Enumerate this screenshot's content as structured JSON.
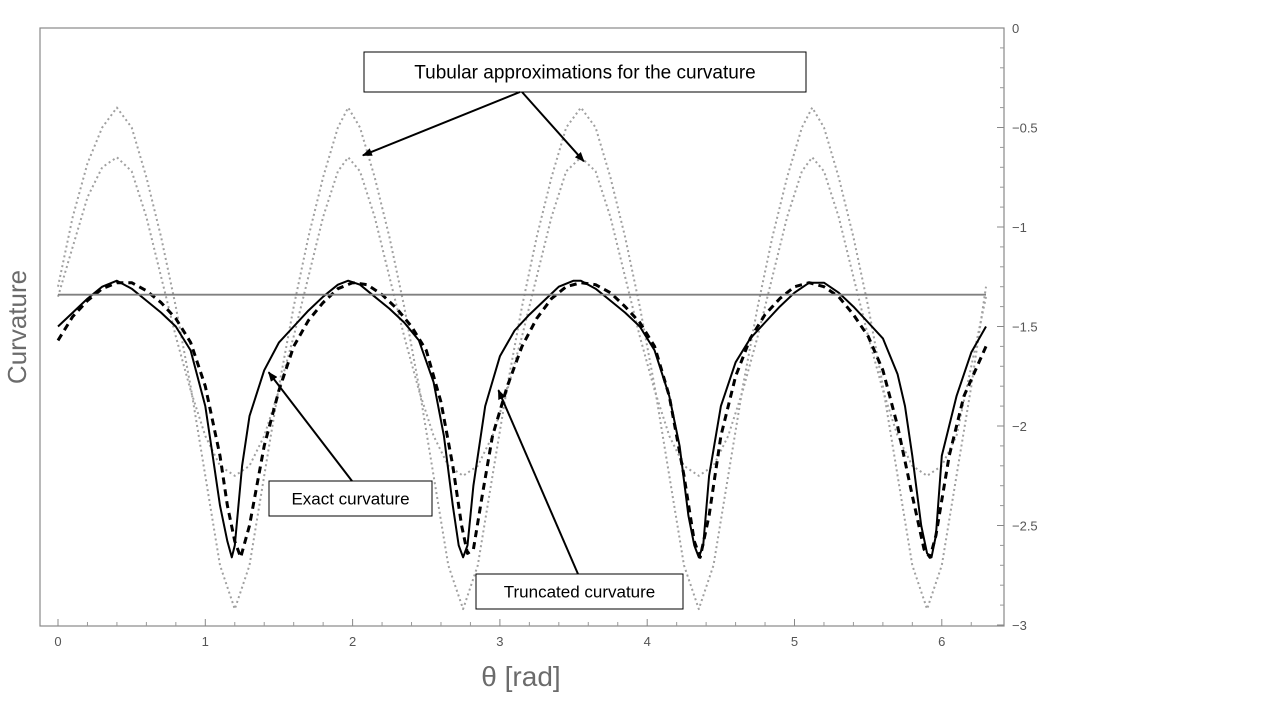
{
  "chart_data": {
    "type": "line",
    "xlabel": "θ [rad]",
    "ylabel": "Curvature",
    "xlim": [
      0,
      6.35
    ],
    "ylim": [
      -3,
      0
    ],
    "x_ticks": [
      0,
      1,
      2,
      3,
      4,
      5,
      6
    ],
    "y_ticks": [
      0,
      -0.5,
      -1,
      -1.5,
      -2,
      -2.5,
      -3
    ],
    "y_tick_labels": [
      "0",
      "−0.5",
      "−1",
      "−1.5",
      "−2",
      "−2.5",
      "−3"
    ],
    "y_axis_side": "right",
    "grid": false,
    "legend": "none",
    "series": [
      {
        "style": "solid",
        "color": "#000000",
        "x": [
          0.0,
          0.1,
          0.2,
          0.3,
          0.4,
          0.5,
          0.6,
          0.7,
          0.8,
          0.9,
          1.0,
          1.05,
          1.1,
          1.15,
          1.18,
          1.2,
          1.25,
          1.3,
          1.4,
          1.5,
          1.6,
          1.7,
          1.8,
          1.9,
          1.97,
          2.05,
          2.15,
          2.25,
          2.35,
          2.45,
          2.55,
          2.62,
          2.68,
          2.72,
          2.75,
          2.78,
          2.82,
          2.9,
          3.0,
          3.1,
          3.2,
          3.3,
          3.4,
          3.5,
          3.55,
          3.65,
          3.75,
          3.85,
          3.95,
          4.05,
          4.15,
          4.22,
          4.28,
          4.32,
          4.35,
          4.38,
          4.42,
          4.5,
          4.6,
          4.7,
          4.8,
          4.9,
          5.0,
          5.1,
          5.2,
          5.3,
          5.4,
          5.5,
          5.6,
          5.7,
          5.75,
          5.8,
          5.86,
          5.9,
          5.93,
          5.96,
          6.0,
          6.1,
          6.2,
          6.3
        ],
        "y": [
          -1.5,
          -1.43,
          -1.36,
          -1.3,
          -1.27,
          -1.31,
          -1.37,
          -1.43,
          -1.5,
          -1.62,
          -1.9,
          -2.15,
          -2.4,
          -2.58,
          -2.66,
          -2.6,
          -2.2,
          -1.95,
          -1.72,
          -1.58,
          -1.5,
          -1.42,
          -1.35,
          -1.29,
          -1.27,
          -1.29,
          -1.35,
          -1.41,
          -1.48,
          -1.57,
          -1.78,
          -2.05,
          -2.4,
          -2.6,
          -2.66,
          -2.6,
          -2.3,
          -1.9,
          -1.65,
          -1.52,
          -1.44,
          -1.37,
          -1.3,
          -1.27,
          -1.27,
          -1.31,
          -1.37,
          -1.43,
          -1.5,
          -1.62,
          -1.85,
          -2.1,
          -2.45,
          -2.6,
          -2.66,
          -2.6,
          -2.25,
          -1.9,
          -1.68,
          -1.56,
          -1.48,
          -1.4,
          -1.33,
          -1.28,
          -1.28,
          -1.33,
          -1.4,
          -1.48,
          -1.56,
          -1.74,
          -1.9,
          -2.15,
          -2.5,
          -2.64,
          -2.66,
          -2.55,
          -2.15,
          -1.85,
          -1.63,
          -1.5
        ]
      },
      {
        "style": "dashed",
        "color": "#000000",
        "x": [
          0.0,
          0.1,
          0.2,
          0.3,
          0.4,
          0.5,
          0.6,
          0.7,
          0.8,
          0.9,
          1.0,
          1.1,
          1.15,
          1.2,
          1.24,
          1.3,
          1.4,
          1.5,
          1.6,
          1.7,
          1.8,
          1.9,
          2.0,
          2.1,
          2.2,
          2.3,
          2.4,
          2.5,
          2.6,
          2.68,
          2.74,
          2.78,
          2.82,
          2.88,
          2.95,
          3.05,
          3.15,
          3.25,
          3.35,
          3.45,
          3.55,
          3.65,
          3.75,
          3.85,
          3.95,
          4.05,
          4.15,
          4.25,
          4.32,
          4.36,
          4.42,
          4.5,
          4.6,
          4.7,
          4.8,
          4.9,
          5.0,
          5.1,
          5.2,
          5.3,
          5.4,
          5.5,
          5.6,
          5.7,
          5.8,
          5.88,
          5.92,
          5.96,
          6.05,
          6.15,
          6.3
        ],
        "y": [
          -1.57,
          -1.45,
          -1.37,
          -1.31,
          -1.28,
          -1.28,
          -1.32,
          -1.38,
          -1.46,
          -1.58,
          -1.8,
          -2.15,
          -2.4,
          -2.58,
          -2.66,
          -2.5,
          -2.1,
          -1.82,
          -1.6,
          -1.47,
          -1.38,
          -1.31,
          -1.28,
          -1.29,
          -1.34,
          -1.41,
          -1.5,
          -1.62,
          -1.88,
          -2.2,
          -2.5,
          -2.64,
          -2.62,
          -2.35,
          -2.05,
          -1.8,
          -1.6,
          -1.46,
          -1.36,
          -1.3,
          -1.28,
          -1.29,
          -1.33,
          -1.4,
          -1.48,
          -1.6,
          -1.85,
          -2.25,
          -2.58,
          -2.66,
          -2.45,
          -2.05,
          -1.75,
          -1.56,
          -1.44,
          -1.36,
          -1.3,
          -1.28,
          -1.3,
          -1.35,
          -1.44,
          -1.55,
          -1.72,
          -2.0,
          -2.35,
          -2.62,
          -2.66,
          -2.55,
          -2.15,
          -1.85,
          -1.6
        ]
      },
      {
        "style": "solid",
        "color": "#808080",
        "x": [
          0.0,
          6.3
        ],
        "y": [
          -1.34,
          -1.34
        ]
      },
      {
        "style": "dotted",
        "color": "#a0a0a0",
        "x": [
          0.0,
          0.1,
          0.2,
          0.3,
          0.4,
          0.5,
          0.6,
          0.7,
          0.8,
          0.9,
          1.0,
          1.1,
          1.2,
          1.3,
          1.4,
          1.5,
          1.6,
          1.7,
          1.8,
          1.9,
          1.97,
          2.05,
          2.15,
          2.25,
          2.35,
          2.45,
          2.55,
          2.65,
          2.75,
          2.85,
          2.95,
          3.05,
          3.15,
          3.25,
          3.35,
          3.45,
          3.55,
          3.65,
          3.75,
          3.85,
          3.95,
          4.05,
          4.15,
          4.25,
          4.35,
          4.45,
          4.55,
          4.65,
          4.75,
          4.85,
          4.95,
          5.05,
          5.12,
          5.2,
          5.3,
          5.4,
          5.5,
          5.6,
          5.7,
          5.8,
          5.9,
          6.0,
          6.1,
          6.2,
          6.3
        ],
        "y": [
          -1.3,
          -0.95,
          -0.68,
          -0.5,
          -0.4,
          -0.5,
          -0.75,
          -1.05,
          -1.4,
          -1.8,
          -2.25,
          -2.7,
          -2.92,
          -2.7,
          -2.25,
          -1.8,
          -1.4,
          -1.05,
          -0.75,
          -0.5,
          -0.4,
          -0.5,
          -0.75,
          -1.05,
          -1.4,
          -1.8,
          -2.25,
          -2.7,
          -2.92,
          -2.7,
          -2.25,
          -1.8,
          -1.4,
          -1.05,
          -0.75,
          -0.5,
          -0.4,
          -0.5,
          -0.75,
          -1.05,
          -1.4,
          -1.8,
          -2.25,
          -2.7,
          -2.92,
          -2.7,
          -2.25,
          -1.8,
          -1.4,
          -1.05,
          -0.75,
          -0.5,
          -0.4,
          -0.5,
          -0.75,
          -1.05,
          -1.4,
          -1.8,
          -2.25,
          -2.7,
          -2.92,
          -2.7,
          -2.25,
          -1.8,
          -1.3
        ]
      },
      {
        "style": "dotted",
        "color": "#a0a0a0",
        "x": [
          0.0,
          0.1,
          0.2,
          0.3,
          0.4,
          0.5,
          0.6,
          0.7,
          0.8,
          0.9,
          1.0,
          1.1,
          1.2,
          1.3,
          1.4,
          1.5,
          1.6,
          1.7,
          1.8,
          1.9,
          1.97,
          2.05,
          2.15,
          2.25,
          2.35,
          2.45,
          2.55,
          2.65,
          2.75,
          2.85,
          2.95,
          3.05,
          3.15,
          3.25,
          3.35,
          3.45,
          3.55,
          3.65,
          3.75,
          3.85,
          3.95,
          4.05,
          4.15,
          4.25,
          4.35,
          4.45,
          4.55,
          4.65,
          4.75,
          4.85,
          4.95,
          5.05,
          5.12,
          5.2,
          5.3,
          5.4,
          5.5,
          5.6,
          5.7,
          5.8,
          5.9,
          6.0,
          6.1,
          6.2,
          6.3
        ],
        "y": [
          -1.35,
          -1.1,
          -0.85,
          -0.7,
          -0.65,
          -0.72,
          -0.95,
          -1.25,
          -1.55,
          -1.82,
          -2.05,
          -2.2,
          -2.25,
          -2.2,
          -2.05,
          -1.82,
          -1.55,
          -1.25,
          -0.95,
          -0.72,
          -0.65,
          -0.72,
          -0.95,
          -1.25,
          -1.55,
          -1.82,
          -2.05,
          -2.2,
          -2.25,
          -2.2,
          -2.05,
          -1.82,
          -1.55,
          -1.25,
          -0.95,
          -0.72,
          -0.65,
          -0.72,
          -0.95,
          -1.25,
          -1.55,
          -1.82,
          -2.05,
          -2.2,
          -2.25,
          -2.2,
          -2.05,
          -1.82,
          -1.55,
          -1.25,
          -0.95,
          -0.72,
          -0.65,
          -0.72,
          -0.95,
          -1.25,
          -1.55,
          -1.82,
          -2.05,
          -2.2,
          -2.25,
          -2.2,
          -2.05,
          -1.7,
          -1.35
        ]
      }
    ],
    "annotations": [
      {
        "text": "Tubular approximations for the curvature",
        "arrows_to": [
          [
            2.07,
            -0.64
          ],
          [
            3.57,
            -0.67
          ]
        ]
      },
      {
        "text": "Exact curvature",
        "arrows_to": [
          [
            1.43,
            -1.73
          ]
        ]
      },
      {
        "text": "Truncated curvature",
        "arrows_to": [
          [
            2.99,
            -1.82
          ]
        ]
      }
    ]
  }
}
